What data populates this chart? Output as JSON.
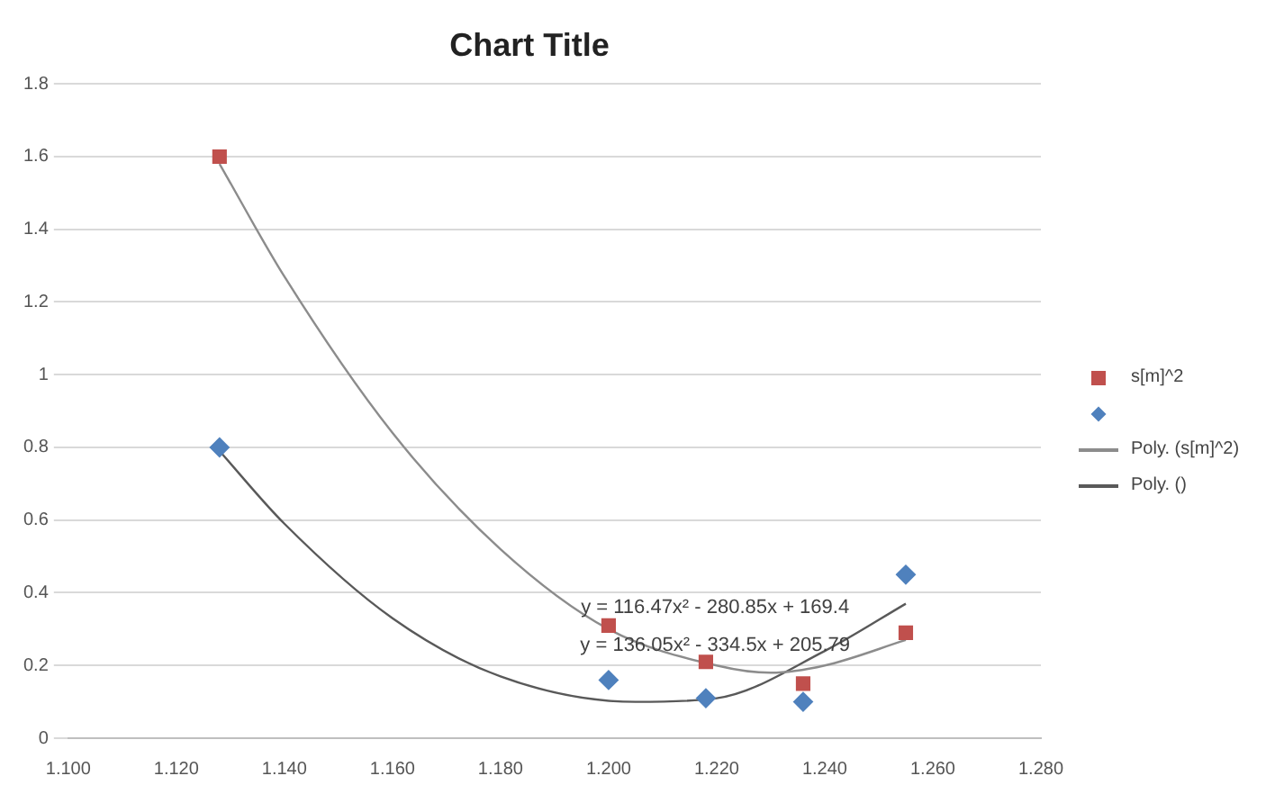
{
  "chart_data": {
    "type": "scatter",
    "title": "Chart Title",
    "series": [
      {
        "name": "s[m]^2",
        "color": "#c0504d",
        "marker": "square",
        "x": [
          1.128,
          1.2,
          1.218,
          1.236,
          1.255
        ],
        "values": [
          1.6,
          0.31,
          0.21,
          0.15,
          0.29
        ]
      },
      {
        "color": "#4f81bd",
        "marker": "diamond",
        "x": [
          1.128,
          1.2,
          1.218,
          1.236,
          1.255
        ],
        "values": [
          0.8,
          0.16,
          0.11,
          0.1,
          0.45
        ]
      },
      {
        "name": "Poly. (s[m]^2)",
        "type": "line",
        "color": "#8c8c8c",
        "marker": "none",
        "x": [
          1.128,
          1.14,
          1.16,
          1.18,
          1.2,
          1.22,
          1.23,
          1.24,
          1.255
        ],
        "values": [
          1.58,
          1.27,
          0.84,
          0.52,
          0.3,
          0.2,
          0.18,
          0.2,
          0.27
        ]
      },
      {
        "name": "Poly. ()",
        "type": "line",
        "color": "#595959",
        "marker": "none",
        "x": [
          1.128,
          1.14,
          1.16,
          1.18,
          1.205,
          1.22,
          1.24,
          1.255
        ],
        "values": [
          0.79,
          0.59,
          0.33,
          0.17,
          0.1,
          0.11,
          0.24,
          0.37
        ]
      }
    ],
    "xlim": [
      1.1,
      1.28
    ],
    "xticks": [
      {
        "value": 1.1,
        "label": "1.100"
      },
      {
        "value": 1.12,
        "label": "1.120"
      },
      {
        "value": 1.14,
        "label": "1.140"
      },
      {
        "value": 1.16,
        "label": "1.160"
      },
      {
        "value": 1.18,
        "label": "1.180"
      },
      {
        "value": 1.2,
        "label": "1.200"
      },
      {
        "value": 1.22,
        "label": "1.220"
      },
      {
        "value": 1.24,
        "label": "1.240"
      },
      {
        "value": 1.26,
        "label": "1.260"
      },
      {
        "value": 1.28,
        "label": "1.280"
      }
    ],
    "ylim": [
      0,
      1.8
    ],
    "yticks": [
      0,
      0.2,
      0.4,
      0.6,
      0.8,
      1,
      1.2,
      1.4,
      1.6,
      1.8
    ],
    "grid": "y",
    "legend": "right",
    "annotations": [
      "y = 116.47x² - 280.85x + 169.4",
      "y = 136.05x² - 334.5x + 205.79"
    ]
  }
}
